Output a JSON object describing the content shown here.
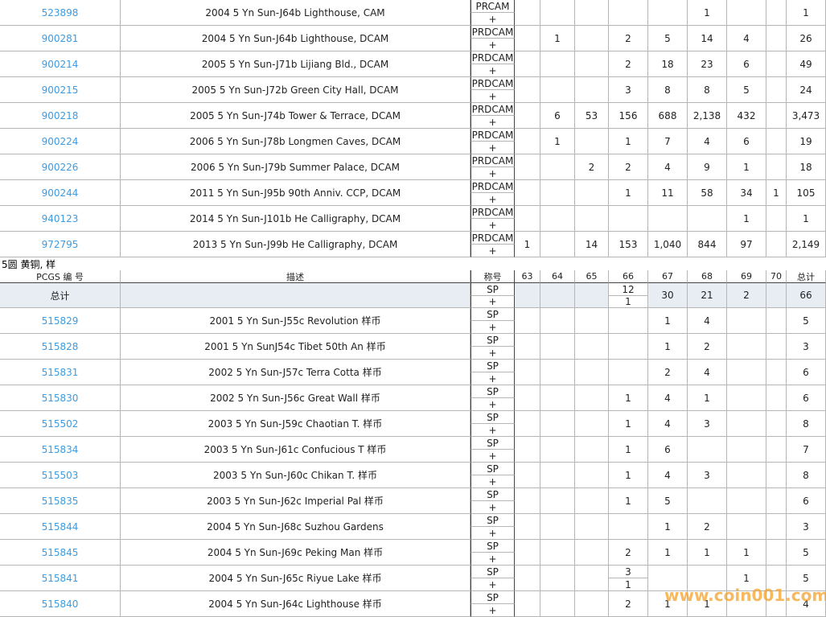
{
  "top_table": {
    "rows": [
      {
        "pcgs": "523898",
        "description": "2004 5 Yn Sun-J64b Lighthouse, CAM",
        "designation": [
          "PRCAM",
          "+"
        ],
        "grades": [
          null,
          null,
          null,
          null,
          null,
          "1",
          null,
          null
        ],
        "total": "1"
      },
      {
        "pcgs": "900281",
        "description": "2004 5 Yn Sun-J64b Lighthouse, DCAM",
        "designation": [
          "PRDCAM",
          "+"
        ],
        "grades": [
          null,
          "1",
          null,
          "2",
          "5",
          "14",
          "4",
          null
        ],
        "total": "26"
      },
      {
        "pcgs": "900214",
        "description": "2005 5 Yn Sun-J71b Lijiang Bld., DCAM",
        "designation": [
          "PRDCAM",
          "+"
        ],
        "grades": [
          null,
          null,
          null,
          "2",
          "18",
          "23",
          "6",
          null
        ],
        "total": "49"
      },
      {
        "pcgs": "900215",
        "description": "2005 5 Yn Sun-J72b Green City Hall, DCAM",
        "designation": [
          "PRDCAM",
          "+"
        ],
        "grades": [
          null,
          null,
          null,
          "3",
          "8",
          "8",
          "5",
          null
        ],
        "total": "24"
      },
      {
        "pcgs": "900218",
        "description": "2005 5 Yn Sun-J74b Tower & Terrace, DCAM",
        "designation": [
          "PRDCAM",
          "+"
        ],
        "grades": [
          null,
          "6",
          "53",
          "156",
          "688",
          "2,138",
          "432",
          null
        ],
        "total": "3,473"
      },
      {
        "pcgs": "900224",
        "description": "2006 5 Yn Sun-J78b Longmen Caves, DCAM",
        "designation": [
          "PRDCAM",
          "+"
        ],
        "grades": [
          null,
          "1",
          null,
          "1",
          "7",
          "4",
          "6",
          null
        ],
        "total": "19"
      },
      {
        "pcgs": "900226",
        "description": "2006 5 Yn Sun-J79b Summer Palace, DCAM",
        "designation": [
          "PRDCAM",
          "+"
        ],
        "grades": [
          null,
          null,
          "2",
          "2",
          "4",
          "9",
          "1",
          null
        ],
        "total": "18"
      },
      {
        "pcgs": "900244",
        "description": "2011 5 Yn Sun-J95b 90th Anniv. CCP, DCAM",
        "designation": [
          "PRDCAM",
          "+"
        ],
        "grades": [
          null,
          null,
          null,
          "1",
          "11",
          "58",
          "34",
          "1"
        ],
        "total": "105"
      },
      {
        "pcgs": "940123",
        "description": "2014 5 Yn Sun-J101b He Calligraphy, DCAM",
        "designation": [
          "PRDCAM",
          "+"
        ],
        "grades": [
          null,
          null,
          null,
          null,
          null,
          null,
          "1",
          null
        ],
        "total": "1"
      },
      {
        "pcgs": "972795",
        "description": "2013 5 Yn Sun-J99b He Calligraphy, DCAM",
        "designation": [
          "PRDCAM",
          "+"
        ],
        "grades": [
          "1",
          null,
          "14",
          "153",
          "1,040",
          "844",
          "97",
          null
        ],
        "total": "2,149"
      }
    ]
  },
  "section": {
    "title": "5圆 黄铜, 样",
    "header": {
      "pcgs": "PCGS 编 号",
      "description": "描述",
      "designation": "称号",
      "grades": [
        "63",
        "64",
        "65",
        "66",
        "67",
        "68",
        "69",
        "70"
      ],
      "total": "总计"
    },
    "summary_row": {
      "label": "总计",
      "designation": [
        "SP",
        "+"
      ],
      "grades": [
        null,
        null,
        null,
        [
          "12",
          "1"
        ],
        "30",
        "21",
        "2",
        null
      ],
      "total": "66"
    },
    "rows": [
      {
        "pcgs": "515829",
        "description": "2001 5 Yn Sun-J55c Revolution 样币",
        "designation": [
          "SP",
          "+"
        ],
        "grades": [
          null,
          null,
          null,
          null,
          "1",
          "4",
          null,
          null
        ],
        "total": "5"
      },
      {
        "pcgs": "515828",
        "description": "2001 5 Yn SunJ54c Tibet 50th An 样币",
        "designation": [
          "SP",
          "+"
        ],
        "grades": [
          null,
          null,
          null,
          null,
          "1",
          "2",
          null,
          null
        ],
        "total": "3"
      },
      {
        "pcgs": "515831",
        "description": "2002 5 Yn Sun-J57c Terra Cotta 样币",
        "designation": [
          "SP",
          "+"
        ],
        "grades": [
          null,
          null,
          null,
          null,
          "2",
          "4",
          null,
          null
        ],
        "total": "6"
      },
      {
        "pcgs": "515830",
        "description": "2002 5 Yn Sun-J56c Great Wall 样币",
        "designation": [
          "SP",
          "+"
        ],
        "grades": [
          null,
          null,
          null,
          "1",
          "4",
          "1",
          null,
          null
        ],
        "total": "6"
      },
      {
        "pcgs": "515502",
        "description": "2003 5 Yn Sun-J59c Chaotian T. 样币",
        "designation": [
          "SP",
          "+"
        ],
        "grades": [
          null,
          null,
          null,
          "1",
          "4",
          "3",
          null,
          null
        ],
        "total": "8"
      },
      {
        "pcgs": "515834",
        "description": "2003 5 Yn Sun-J61c Confucious T 样币",
        "designation": [
          "SP",
          "+"
        ],
        "grades": [
          null,
          null,
          null,
          "1",
          "6",
          null,
          null,
          null
        ],
        "total": "7"
      },
      {
        "pcgs": "515503",
        "description": "2003 5 Yn Sun-J60c Chikan T. 样币",
        "designation": [
          "SP",
          "+"
        ],
        "grades": [
          null,
          null,
          null,
          "1",
          "4",
          "3",
          null,
          null
        ],
        "total": "8"
      },
      {
        "pcgs": "515835",
        "description": "2003 5 Yn Sun-J62c Imperial Pal 样币",
        "designation": [
          "SP",
          "+"
        ],
        "grades": [
          null,
          null,
          null,
          "1",
          "5",
          null,
          null,
          null
        ],
        "total": "6"
      },
      {
        "pcgs": "515844",
        "description": "2004 5 Yn Sun-J68c Suzhou Gardens",
        "designation": [
          "SP",
          "+"
        ],
        "grades": [
          null,
          null,
          null,
          null,
          "1",
          "2",
          null,
          null
        ],
        "total": "3"
      },
      {
        "pcgs": "515845",
        "description": "2004 5 Yn Sun-J69c Peking Man 样币",
        "designation": [
          "SP",
          "+"
        ],
        "grades": [
          null,
          null,
          null,
          "2",
          "1",
          "1",
          "1",
          null
        ],
        "total": "5"
      },
      {
        "pcgs": "515841",
        "description": "2004 5 Yn Sun-J65c Riyue Lake 样币",
        "designation": [
          "SP",
          "+"
        ],
        "grades": [
          null,
          null,
          null,
          [
            "3",
            "1"
          ],
          null,
          null,
          "1",
          null
        ],
        "total": "5"
      },
      {
        "pcgs": "515840",
        "description": "2004 5 Yn Sun-J64c Lighthouse 样币",
        "designation": [
          "SP",
          "+"
        ],
        "grades": [
          null,
          null,
          null,
          "2",
          "1",
          "1",
          null,
          null
        ],
        "total": "4"
      }
    ]
  },
  "watermark": "www.coin001.com"
}
